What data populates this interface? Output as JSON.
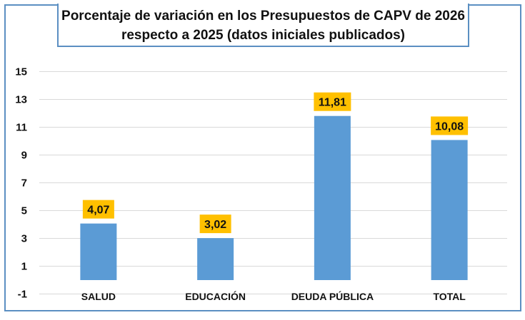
{
  "chart_data": {
    "type": "bar",
    "title_line1": "Porcentaje de variación en los Presupuestos de CAPV de 2026",
    "title_line2": "respecto a 2025 (datos iniciales publicados)",
    "categories": [
      "SALUD",
      "EDUCACIÓN",
      "DEUDA PÚBLICA",
      "TOTAL"
    ],
    "values": [
      4.07,
      3.02,
      11.81,
      10.08
    ],
    "data_labels": [
      "4,07",
      "3,02",
      "11,81",
      "10,08"
    ],
    "yticks": [
      -1,
      1,
      3,
      5,
      7,
      9,
      11,
      13,
      15
    ],
    "ylim": [
      -1,
      15
    ],
    "xlabel": "",
    "ylabel": "",
    "grid": true,
    "legend": "none",
    "colors": {
      "bar": "#5b9bd5",
      "label_bg": "#ffc000",
      "frame": "#5b8fc2",
      "grid": "#d9d9d9"
    }
  }
}
